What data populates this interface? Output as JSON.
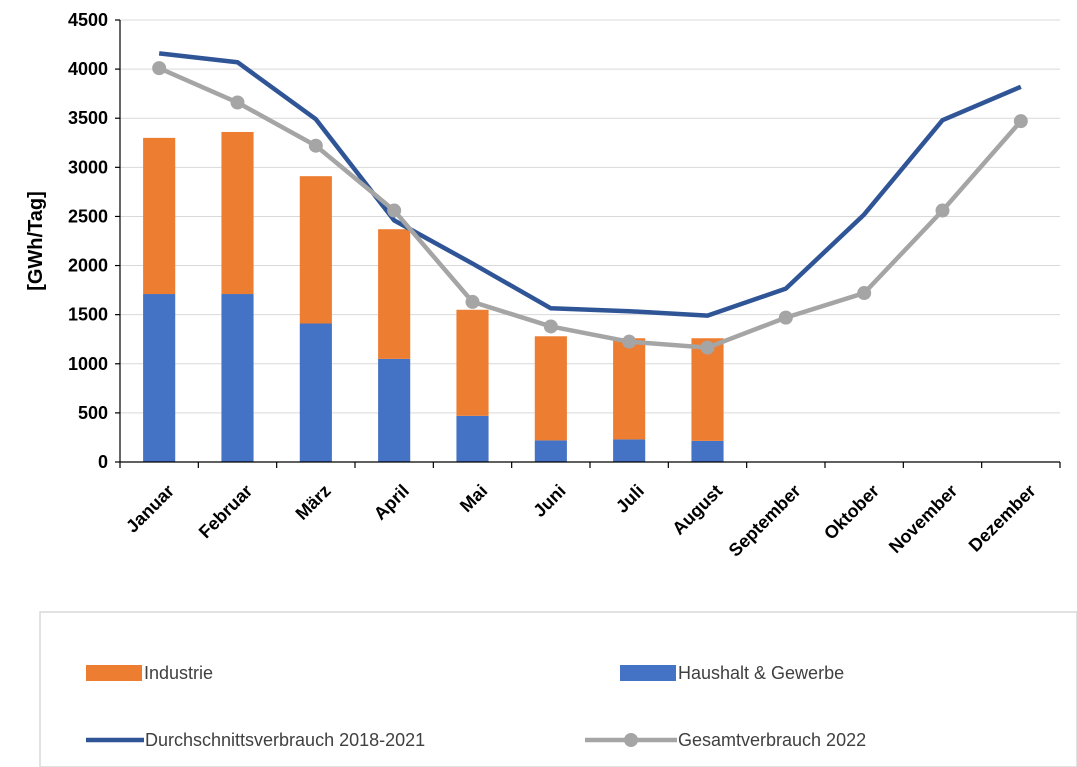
{
  "chart_data": {
    "type": "bar",
    "stacked": true,
    "categories": [
      "Januar",
      "Februar",
      "März",
      "April",
      "Mai",
      "Juni",
      "Juli",
      "August",
      "September",
      "Oktober",
      "November",
      "Dezember"
    ],
    "ylabel": "[GWh/Tag]",
    "xlabel": "",
    "ylim": [
      0,
      4500
    ],
    "yticks": [
      0,
      500,
      1000,
      1500,
      2000,
      2500,
      3000,
      3500,
      4000,
      4500
    ],
    "grid": true,
    "legend_position": "bottom",
    "series": [
      {
        "name": "Haushalt & Gewerbe",
        "kind": "bar",
        "color": "#4472C4",
        "values": [
          1710,
          1710,
          1410,
          1050,
          470,
          220,
          230,
          215,
          null,
          null,
          null,
          null
        ]
      },
      {
        "name": "Industrie",
        "kind": "bar",
        "color": "#ED7D31",
        "values": [
          1590,
          1650,
          1500,
          1320,
          1080,
          1060,
          1030,
          1045,
          null,
          null,
          null,
          null
        ]
      },
      {
        "name": "Durchschnittsverbrauch 2018-2021",
        "kind": "line",
        "color": "#2F5597",
        "values": [
          4160,
          4070,
          3490,
          2460,
          2020,
          1565,
          1535,
          1490,
          1765,
          2520,
          3480,
          3820
        ]
      },
      {
        "name": "Gesamtverbrauch 2022",
        "kind": "line-marker",
        "color": "#A5A5A5",
        "values": [
          4010,
          3660,
          3220,
          2560,
          1630,
          1380,
          1225,
          1165,
          1470,
          1720,
          2560,
          3470
        ]
      }
    ],
    "legend_order": [
      "Industrie",
      "Haushalt & Gewerbe",
      "Durchschnittsverbrauch 2018-2021",
      "Gesamtverbrauch 2022"
    ]
  }
}
